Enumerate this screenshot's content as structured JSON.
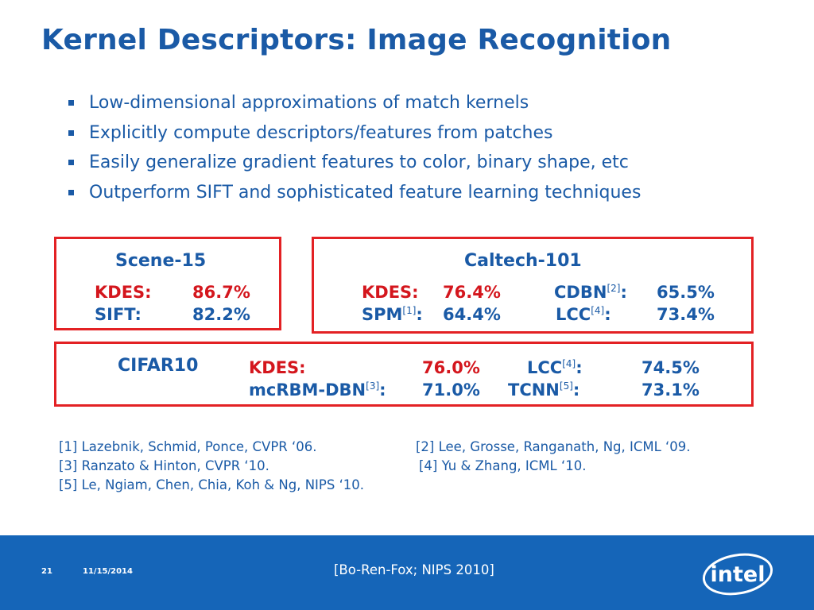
{
  "slide": {
    "title": "Kernel Descriptors: Image Recognition",
    "bullets": [
      "Low-dimensional approximations of match kernels",
      "Explicitly compute descriptors/features from patches",
      "Easily generalize gradient features to color, binary shape, etc",
      "Outperform SIFT and sophisticated feature learning techniques"
    ]
  },
  "scene15": {
    "title": "Scene-15",
    "kdes_label": "KDES:",
    "kdes_value": "86.7%",
    "sift_label": "SIFT:",
    "sift_value": "82.2%"
  },
  "caltech101": {
    "title": "Caltech-101",
    "kdes_label": "KDES:",
    "kdes_value": "76.4%",
    "spm_label": "SPM",
    "spm_ref": "[1]",
    "spm_value": "64.4%",
    "cdbn_label": "CDBN",
    "cdbn_ref": "[2]",
    "cdbn_value": "65.5%",
    "lcc_label": "LCC",
    "lcc_ref": "[4]",
    "lcc_value": "73.4%"
  },
  "cifar10": {
    "title": "CIFAR10",
    "kdes_label": "KDES:",
    "kdes_value": "76.0%",
    "mcrbm_label": "mcRBM-DBN",
    "mcrbm_ref": "[3]",
    "mcrbm_value": "71.0%",
    "lcc_label": "LCC",
    "lcc_ref": "[4]",
    "lcc_value": "74.5%",
    "tcnn_label": "TCNN",
    "tcnn_ref": "[5]",
    "tcnn_value": "73.1%"
  },
  "references": {
    "r1": "[1] Lazebnik, Schmid, Ponce, CVPR ‘06.",
    "r2": "[2] Lee, Grosse, Ranganath, Ng, ICML ‘09.",
    "r3": "[3] Ranzato & Hinton, CVPR ‘10.",
    "r4": "[4] Yu & Zhang, ICML ‘10.",
    "r5": "[5] Le, Ngiam, Chen, Chia, Koh & Ng, NIPS ‘10."
  },
  "footer": {
    "page_number": "21",
    "date": "11/15/2014",
    "citation": "[Bo-Ren-Fox; NIPS 2010]",
    "logo_text": "intel"
  },
  "colors": {
    "title_blue": "#1a5aa6",
    "box_red": "#e32124",
    "kdes_red": "#d4161d",
    "footer_blue": "#1565b8"
  },
  "icons": [
    "bullet-square-icon",
    "intel-logo-icon"
  ]
}
